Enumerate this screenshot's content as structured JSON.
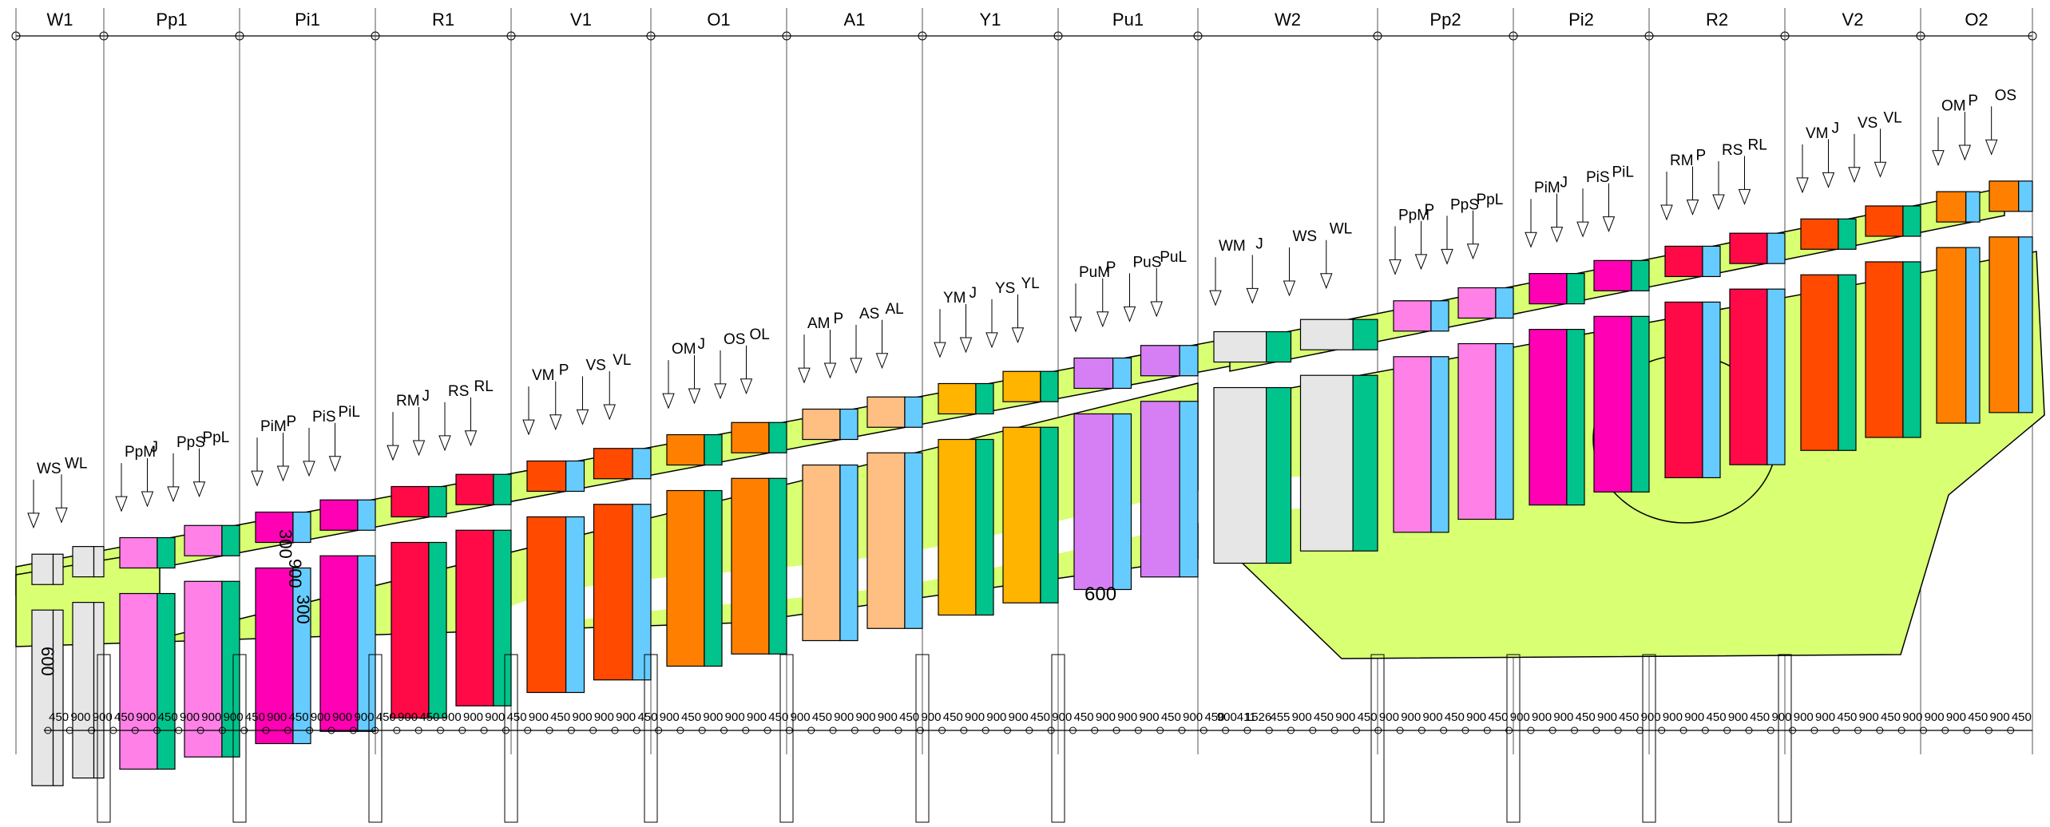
{
  "column_headers": [
    "W1",
    "Pp1",
    "Pi1",
    "R1",
    "V1",
    "O1",
    "A1",
    "Y1",
    "Pu1",
    "W2",
    "Pp2",
    "Pi2",
    "R2",
    "V2",
    "O2"
  ],
  "beds": [
    {
      "code": "W",
      "main": [
        "WS",
        "WL"
      ],
      "dims": [
        "450",
        "900"
      ],
      "color": "#e6e6e6",
      "accent": "#e6e6e6"
    },
    {
      "code": "Pp",
      "main": [
        "PpM",
        "J",
        "PpS",
        "PpL"
      ],
      "dims": [
        "900",
        "450",
        "900",
        "450",
        "900"
      ],
      "color": "#ff80e6",
      "accent": "#00c48c"
    },
    {
      "code": "Pi",
      "main": [
        "PiM",
        "P",
        "PiS",
        "PiL"
      ],
      "dims": [
        "900",
        "450",
        "900",
        "450",
        "900"
      ],
      "color": "#ff00b4",
      "accent": "#66ccff"
    },
    {
      "code": "R",
      "main": [
        "RM",
        "J",
        "RS",
        "RL"
      ],
      "dims": [
        "900",
        "450",
        "900",
        "450",
        "900"
      ],
      "color": "#ff0a46",
      "accent": "#00c48c"
    },
    {
      "code": "V",
      "main": [
        "VM",
        "P",
        "VS",
        "VL"
      ],
      "dims": [
        "900",
        "450",
        "900",
        "450",
        "900"
      ],
      "color": "#ff4a00",
      "accent": "#66ccff"
    },
    {
      "code": "O",
      "main": [
        "OM",
        "J",
        "OS",
        "OL"
      ],
      "dims": [
        "900",
        "450",
        "900",
        "450",
        "900"
      ],
      "color": "#ff8000",
      "accent": "#00c48c"
    },
    {
      "code": "A",
      "main": [
        "AM",
        "P",
        "AS",
        "AL"
      ],
      "dims": [
        "900",
        "450",
        "900",
        "450",
        "900"
      ],
      "color": "#ffbe82",
      "accent": "#66ccff"
    },
    {
      "code": "Y",
      "main": [
        "YM",
        "J",
        "YS",
        "YL"
      ],
      "dims": [
        "900",
        "450",
        "900",
        "450",
        "900"
      ],
      "color": "#ffb400",
      "accent": "#00c48c"
    },
    {
      "code": "Pu",
      "main": [
        "PuM",
        "P",
        "PuS",
        "PuL"
      ],
      "dims": [
        "900",
        "450",
        "900",
        "411"
      ],
      "color": "#d67ff5",
      "accent": "#66ccff"
    }
  ],
  "beds2": [
    {
      "code": "W",
      "main": [
        "WM",
        "J",
        "WS",
        "WL"
      ],
      "color": "#e6e6e6",
      "accent": "#00c48c"
    },
    {
      "code": "Pp",
      "main": [
        "PpM",
        "P",
        "PpS",
        "PpL"
      ],
      "color": "#ff80e6",
      "accent": "#66ccff"
    },
    {
      "code": "Pi",
      "main": [
        "PiM",
        "J",
        "PiS",
        "PiL"
      ],
      "color": "#ff00b4",
      "accent": "#00c48c"
    },
    {
      "code": "R",
      "main": [
        "RM",
        "P",
        "RS",
        "RL"
      ],
      "color": "#ff0a46",
      "accent": "#66ccff"
    },
    {
      "code": "V",
      "main": [
        "VM",
        "J",
        "VS",
        "VL"
      ],
      "color": "#ff4a00",
      "accent": "#00c48c"
    },
    {
      "code": "O",
      "main": [
        "OM",
        "P",
        "OS"
      ],
      "color": "#ff8000",
      "accent": "#66ccff"
    }
  ],
  "dim_labels": [
    "450",
    "900",
    "900",
    "450",
    "900",
    "450",
    "900",
    "900",
    "900",
    "450",
    "900",
    "450",
    "900",
    "900",
    "900",
    "450",
    "900",
    "450",
    "900",
    "900",
    "900",
    "450",
    "900",
    "450",
    "900",
    "900",
    "900",
    "450",
    "900",
    "450",
    "900",
    "900",
    "900",
    "450",
    "900",
    "450",
    "900",
    "900",
    "900",
    "450",
    "900",
    "450",
    "900",
    "900",
    "900",
    "450",
    "900",
    "450",
    "900",
    "900",
    "900",
    "450",
    "900",
    "450",
    "900411",
    "1526",
    "455",
    "900",
    "450",
    "900",
    "450",
    "900",
    "900",
    "900",
    "450",
    "900",
    "450",
    "900",
    "900",
    "900",
    "450",
    "900",
    "450",
    "900",
    "900",
    "900",
    "450",
    "900",
    "450",
    "900",
    "900",
    "900",
    "450",
    "900",
    "450",
    "900",
    "900",
    "900",
    "450",
    "900",
    "450"
  ],
  "annotations": {
    "v300a": "300",
    "v900": "900",
    "v300b": "300",
    "h600": "600",
    "v600": "600"
  },
  "colors": {
    "field": "#d9ff73",
    "road": "#e6e6e6",
    "line": "#000000"
  }
}
